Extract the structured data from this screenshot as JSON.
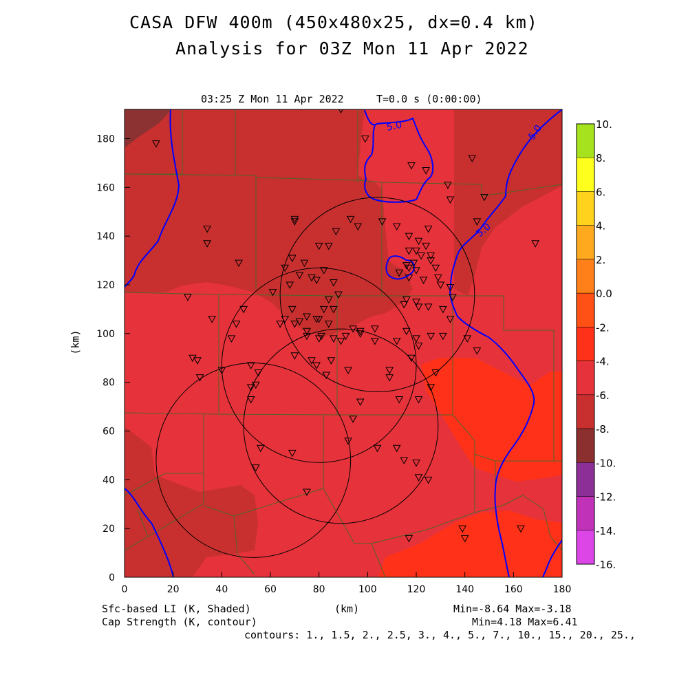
{
  "title_line1": "CASA DFW 400m (450x480x25, dx=0.4 km)",
  "title_line2": "Analysis for 03Z Mon 11 Apr 2022",
  "plot_time": "03:25 Z Mon 11 Apr 2022",
  "plot_t": "T=0.0 s (0:00:00)",
  "x_axis_label": "(km)",
  "y_axis_label": "(km)",
  "x_ticks": [
    "0",
    "20",
    "40",
    "60",
    "80",
    "100",
    "120",
    "140",
    "160",
    "180"
  ],
  "y_ticks": [
    "0",
    "20",
    "40",
    "60",
    "80",
    "100",
    "120",
    "140",
    "160",
    "180"
  ],
  "shaded_field": "Sfc-based LI (K, Shaded)",
  "contour_field": "Cap Strength (K, contour)",
  "shaded_minmax": "Min=-8.64 Max=-3.18",
  "contour_minmax": "Min=4.18 Max=6.41",
  "contour_levels": "contours: 1., 1.5, 2., 2.5, 3., 4., 5., 7., 10., 15., 20., 25.,",
  "contour_label": "5.0",
  "colorbar": {
    "labels": [
      "10.",
      "8.",
      "6.",
      "4.",
      "2.",
      "0.0",
      "-2.",
      "-4.",
      "-6.",
      "-8.",
      "-10.",
      "-12.",
      "-14.",
      "-16."
    ],
    "colors": [
      "#a6e21e",
      "#d4f51a",
      "#ffff1e",
      "#ffd21e",
      "#ffaa1e",
      "#ff8019",
      "#ff5015",
      "#ff3219",
      "#e6323a",
      "#c8302f",
      "#8c2f2f",
      "#8c2f96",
      "#c032b8",
      "#dc46e6"
    ]
  },
  "field_colors": {
    "level_minus4": "#ff3219",
    "level_minus6": "#e6323a",
    "level_minus8": "#c8302f",
    "level_minus10": "#8c3232",
    "contour": "#0000ff",
    "boundaries": "#506428"
  },
  "chart_data": {
    "type": "heatmap",
    "title": "CASA DFW 400m (450x480x25, dx=0.4 km)",
    "subtitle": "Analysis for 03Z Mon 11 Apr 2022",
    "xlabel": "(km)",
    "ylabel": "(km)",
    "xlim": [
      0,
      180
    ],
    "ylim": [
      0,
      192
    ],
    "colorbar_range": [
      -16,
      10
    ],
    "colorbar_interval": 2,
    "shaded_min": -8.64,
    "shaded_max": -3.18,
    "contour_min": 4.18,
    "contour_max": 6.41,
    "labeled_contour": 5.0,
    "radar_rings": [
      {
        "x": 53,
        "y": 48,
        "r": 40
      },
      {
        "x": 80,
        "y": 87,
        "r": 40
      },
      {
        "x": 104,
        "y": 116,
        "r": 40
      },
      {
        "x": 89,
        "y": 62,
        "r": 40
      }
    ],
    "stations": [
      [
        13,
        178
      ],
      [
        89,
        192
      ],
      [
        99,
        180
      ],
      [
        118,
        169
      ],
      [
        124,
        167
      ],
      [
        143,
        172
      ],
      [
        133,
        161
      ],
      [
        134,
        155
      ],
      [
        148,
        156
      ],
      [
        145,
        146
      ],
      [
        169,
        137
      ],
      [
        34,
        143
      ],
      [
        34,
        137
      ],
      [
        47,
        129
      ],
      [
        70,
        147
      ],
      [
        70,
        146
      ],
      [
        80,
        136
      ],
      [
        84,
        136
      ],
      [
        87,
        142
      ],
      [
        93,
        147
      ],
      [
        96,
        144
      ],
      [
        106,
        146
      ],
      [
        112,
        144
      ],
      [
        117,
        140
      ],
      [
        121,
        138
      ],
      [
        125,
        143
      ],
      [
        117,
        134
      ],
      [
        124,
        136
      ],
      [
        126,
        132
      ],
      [
        126,
        130
      ],
      [
        120,
        134
      ],
      [
        122,
        132
      ],
      [
        128,
        127
      ],
      [
        119,
        129
      ],
      [
        116,
        128
      ],
      [
        117,
        127
      ],
      [
        120,
        126
      ],
      [
        113,
        125
      ],
      [
        117,
        123
      ],
      [
        123,
        122
      ],
      [
        129,
        123
      ],
      [
        130,
        120
      ],
      [
        134,
        119
      ],
      [
        135,
        115
      ],
      [
        116,
        114
      ],
      [
        120,
        113
      ],
      [
        115,
        112
      ],
      [
        121,
        111
      ],
      [
        125,
        111
      ],
      [
        131,
        110
      ],
      [
        134,
        106
      ],
      [
        141,
        98
      ],
      [
        145,
        93
      ],
      [
        131,
        99
      ],
      [
        126,
        99
      ],
      [
        120,
        98
      ],
      [
        116,
        101
      ],
      [
        112,
        97
      ],
      [
        103,
        102
      ],
      [
        97,
        100
      ],
      [
        97,
        101
      ],
      [
        94,
        102
      ],
      [
        86,
        98
      ],
      [
        91,
        99
      ],
      [
        89,
        97
      ],
      [
        81,
        99
      ],
      [
        80,
        98
      ],
      [
        75,
        99
      ],
      [
        75,
        101
      ],
      [
        75,
        107
      ],
      [
        79,
        106
      ],
      [
        80,
        106
      ],
      [
        84,
        104
      ],
      [
        82,
        110
      ],
      [
        84,
        114
      ],
      [
        88,
        116
      ],
      [
        86,
        110
      ],
      [
        86,
        121
      ],
      [
        82,
        126
      ],
      [
        79,
        122
      ],
      [
        77,
        123
      ],
      [
        74,
        129
      ],
      [
        72,
        124
      ],
      [
        69,
        131
      ],
      [
        66,
        127
      ],
      [
        68,
        120
      ],
      [
        61,
        117
      ],
      [
        49,
        110
      ],
      [
        46,
        104
      ],
      [
        44,
        98
      ],
      [
        36,
        106
      ],
      [
        26,
        115
      ],
      [
        28,
        90
      ],
      [
        30,
        89
      ],
      [
        31,
        82
      ],
      [
        40,
        85
      ],
      [
        52,
        87
      ],
      [
        55,
        84
      ],
      [
        54,
        79
      ],
      [
        52,
        78
      ],
      [
        52,
        73
      ],
      [
        64,
        104
      ],
      [
        66,
        106
      ],
      [
        70,
        104
      ],
      [
        72,
        105
      ],
      [
        69,
        110
      ],
      [
        70,
        91
      ],
      [
        77,
        89
      ],
      [
        79,
        87
      ],
      [
        83,
        83
      ],
      [
        85,
        89
      ],
      [
        92,
        85
      ],
      [
        103,
        97
      ],
      [
        109,
        85
      ],
      [
        118,
        90
      ],
      [
        121,
        95
      ],
      [
        128,
        84
      ],
      [
        126,
        78
      ],
      [
        121,
        73
      ],
      [
        113,
        73
      ],
      [
        109,
        82
      ],
      [
        94,
        65
      ],
      [
        97,
        72
      ],
      [
        104,
        53
      ],
      [
        112,
        53
      ],
      [
        115,
        48
      ],
      [
        120,
        47
      ],
      [
        121,
        41
      ],
      [
        125,
        40
      ],
      [
        56,
        53
      ],
      [
        69,
        51
      ],
      [
        54,
        45
      ],
      [
        75,
        35
      ],
      [
        92,
        56
      ],
      [
        117,
        16
      ],
      [
        139,
        20
      ],
      [
        140,
        16
      ],
      [
        163,
        20
      ]
    ]
  }
}
